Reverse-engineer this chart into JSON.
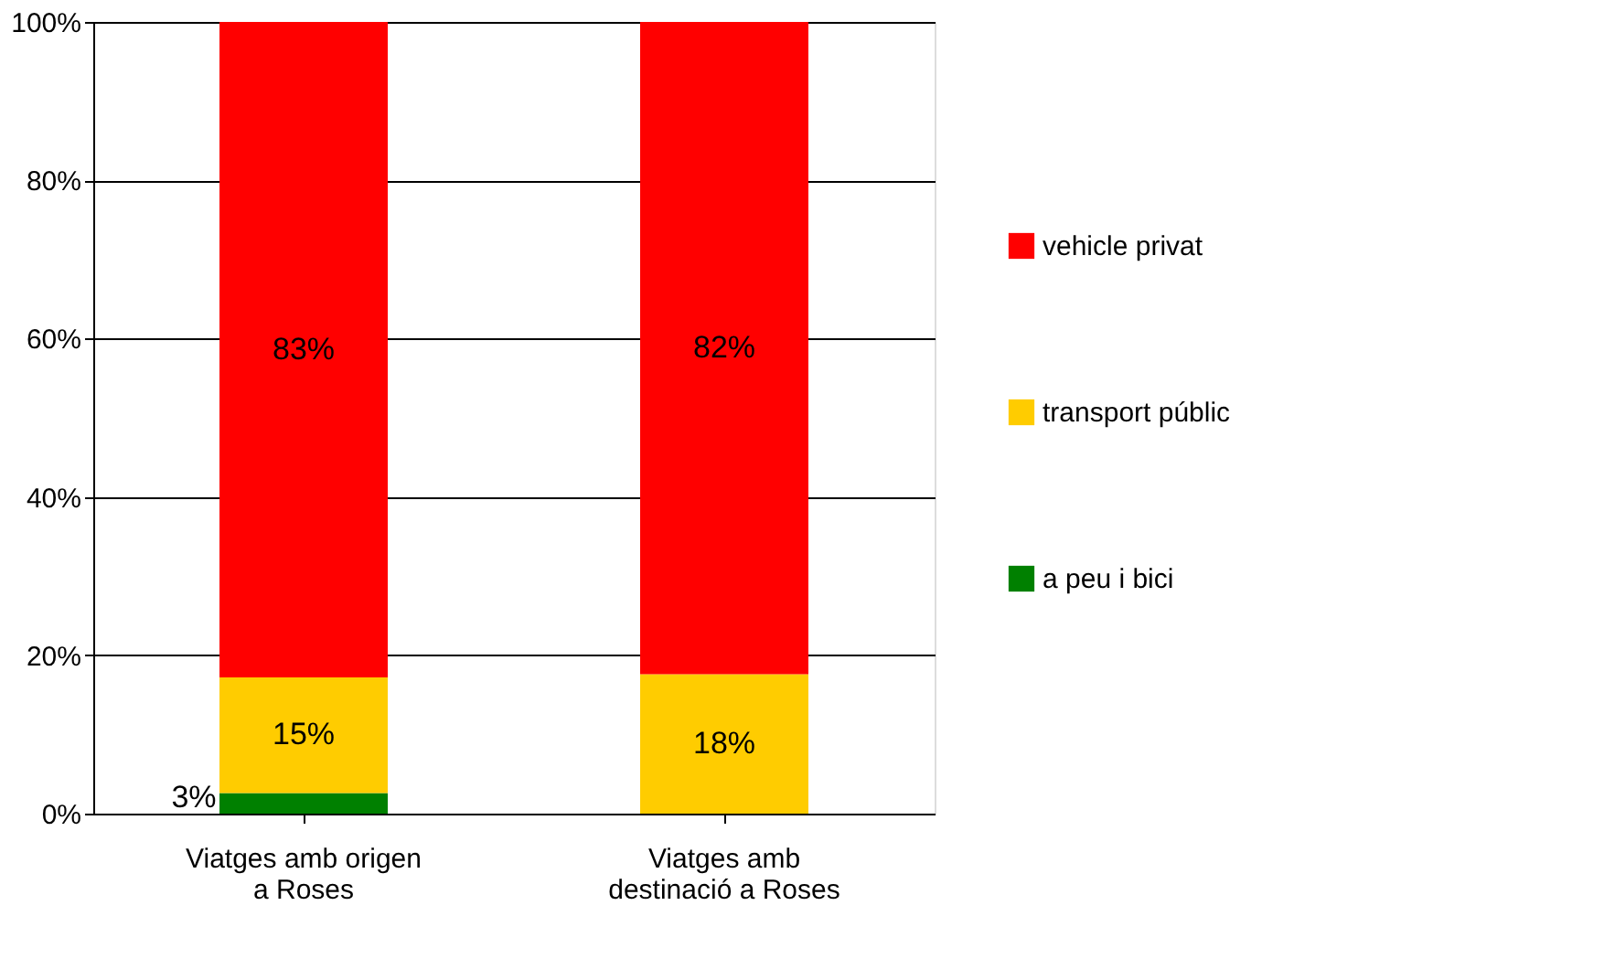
{
  "chart_data": {
    "type": "bar",
    "stacked": true,
    "categories": [
      "Viatges amb origen a Roses",
      "Viatges amb destinació a Roses"
    ],
    "series": [
      {
        "name": "a peu i bici",
        "color": "#008000",
        "values": [
          2.6,
          0
        ],
        "value_labels": [
          "3%",
          null
        ]
      },
      {
        "name": "transport públic",
        "color": "#ffcc00",
        "values": [
          14.6,
          17.6
        ],
        "value_labels": [
          "15%",
          "18%"
        ]
      },
      {
        "name": "vehicle privat",
        "color": "#ff0000",
        "values": [
          82.8,
          82.4
        ],
        "value_labels": [
          "83%",
          "82%"
        ]
      }
    ],
    "ylim": [
      0,
      100
    ],
    "yticks": [
      {
        "value": 0,
        "label": "0%"
      },
      {
        "value": 20,
        "label": "20%"
      },
      {
        "value": 40,
        "label": "40%"
      },
      {
        "value": 60,
        "label": "60%"
      },
      {
        "value": 80,
        "label": "80%"
      },
      {
        "value": 100,
        "label": "100%"
      }
    ],
    "grid": "y",
    "legend": "right"
  }
}
